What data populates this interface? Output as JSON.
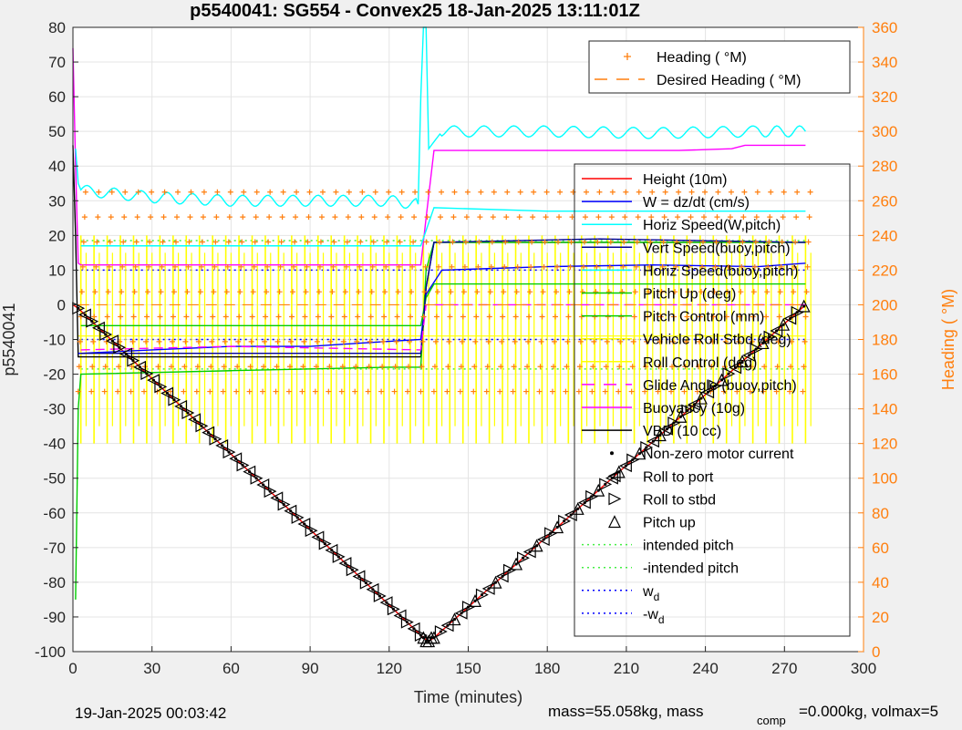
{
  "title": "p5540041: SG554 - Convex25 18-Jan-2025 13:11:01Z",
  "footer": {
    "date": "19-Jan-2025 00:03:42",
    "mass_text": "mass=55.058kg, mass",
    "comp_sub": "comp",
    "comp_text": "=0.000kg, volmax=5"
  },
  "colors": {
    "red": "#ff0000",
    "blue": "#0000ff",
    "cyan": "#00ffff",
    "navy": "#000099",
    "green": "#00cc00",
    "magenta": "#ff00ff",
    "yellow": "#ffff00",
    "orange": "#ff7f0e",
    "black": "#000000",
    "lightgreen": "#44ee44"
  },
  "chart_data": {
    "type": "line",
    "title": "p5540041: SG554 - Convex25 18-Jan-2025 13:11:01Z",
    "xlabel": "Time (minutes)",
    "ylabel": "p5540041",
    "y2label": "Heading (  °M)",
    "xlim": [
      0,
      300
    ],
    "ylim": [
      -100,
      80
    ],
    "y2lim": [
      0,
      360
    ],
    "xticks": [
      0,
      30,
      60,
      90,
      120,
      150,
      180,
      210,
      240,
      270,
      300
    ],
    "yticks": [
      -100,
      -90,
      -80,
      -70,
      -60,
      -50,
      -40,
      -30,
      -20,
      -10,
      0,
      10,
      20,
      30,
      40,
      50,
      60,
      70,
      80
    ],
    "y2ticks": [
      0,
      20,
      40,
      60,
      80,
      100,
      120,
      140,
      160,
      180,
      200,
      220,
      240,
      260,
      280,
      300,
      320,
      340,
      360
    ],
    "grid": true,
    "legend_top": [
      {
        "label": "Heading (  °M)",
        "style": "plus",
        "color": "orange"
      },
      {
        "label": "Desired Heading (    °M)",
        "style": "dash",
        "color": "orange"
      }
    ],
    "legend_main": [
      {
        "label": "Height (10m)",
        "style": "line",
        "color": "red"
      },
      {
        "label": "W = dz/dt (cm/s)",
        "style": "line",
        "color": "blue"
      },
      {
        "label": "Horiz Speed(W,pitch)",
        "style": "line",
        "color": "cyan"
      },
      {
        "label": "Vert Speed(buoy,pitch)",
        "style": "line",
        "color": "navy"
      },
      {
        "label": "Horiz Speed(buoy,pitch)",
        "style": "line",
        "color": "cyan"
      },
      {
        "label": "Pitch Up (deg)",
        "style": "line",
        "color": "green"
      },
      {
        "label": "Pitch Control (mm)",
        "style": "line",
        "color": "green"
      },
      {
        "label": "Vehicle Roll Stbd (deg)",
        "style": "line",
        "color": "yellow"
      },
      {
        "label": "Roll Control (deg)",
        "style": "line",
        "color": "yellow"
      },
      {
        "label": "Glide Angle (buoy,pitch)",
        "style": "dash",
        "color": "magenta"
      },
      {
        "label": "Buoyancy (10g)",
        "style": "line",
        "color": "magenta"
      },
      {
        "label": "VBD (10 cc)",
        "style": "line",
        "color": "black"
      },
      {
        "label": "Non-zero motor current",
        "style": "dot",
        "color": "black"
      },
      {
        "label": "Roll to port",
        "style": "tri-left",
        "color": "black"
      },
      {
        "label": "Roll to stbd",
        "style": "tri-right",
        "color": "black"
      },
      {
        "label": "Pitch up",
        "style": "tri-up",
        "color": "black"
      },
      {
        "label": "intended pitch",
        "style": "dotted",
        "color": "lightgreen"
      },
      {
        "label": "-intended pitch",
        "style": "dotted",
        "color": "lightgreen"
      },
      {
        "label": "w",
        "sub": "d",
        "style": "dotted",
        "color": "blue"
      },
      {
        "label": "-w",
        "sub": "d",
        "style": "dotted",
        "color": "blue"
      }
    ],
    "series": [
      {
        "name": "Height (10m)",
        "color": "red",
        "x": [
          0,
          2,
          133,
          135,
          137,
          278
        ],
        "y": [
          0,
          -1,
          -96,
          -97,
          -96,
          0
        ]
      },
      {
        "name": "Buoyancy (10g)",
        "color": "magenta",
        "x": [
          0,
          1,
          2,
          3,
          132,
          134,
          137,
          230,
          250,
          255,
          278
        ],
        "y": [
          74,
          40,
          12,
          11.5,
          11.5,
          25,
          44.5,
          44.5,
          45,
          46,
          46
        ]
      },
      {
        "name": "VBD (10 cc)",
        "color": "black",
        "x": [
          0,
          1,
          2,
          3,
          132,
          134,
          137,
          278
        ],
        "y": [
          46,
          20,
          -15,
          -15,
          -15,
          5,
          18,
          18
        ]
      },
      {
        "name": "W = dz/dt (cm/s)",
        "color": "blue",
        "x": [
          2,
          3,
          30,
          60,
          90,
          110,
          132,
          134,
          140,
          180,
          220,
          260,
          278
        ],
        "y": [
          -14,
          -14,
          -13,
          -12,
          -12,
          -11,
          -10,
          3,
          10,
          11,
          11.5,
          11,
          12
        ]
      },
      {
        "name": "Horiz Speed(W,pitch)",
        "color": "cyan",
        "x": [
          1,
          2,
          3,
          30,
          60,
          90,
          120,
          131,
          132,
          133,
          134,
          135,
          137,
          140,
          180,
          220,
          260,
          278
        ],
        "y": [
          45,
          35,
          33,
          31,
          30,
          30,
          30,
          29,
          60,
          80,
          80,
          45,
          47,
          50,
          50,
          49.5,
          50,
          50
        ]
      },
      {
        "name": "Horiz Speed(buoy,pitch)",
        "color": "cyan",
        "x": [
          3,
          60,
          120,
          132,
          137,
          180,
          240,
          278
        ],
        "y": [
          17,
          17,
          17,
          17,
          28,
          27,
          27,
          27
        ]
      },
      {
        "name": "Pitch Control (mm)",
        "color": "green",
        "x": [
          1,
          2,
          3,
          60,
          120,
          132,
          134,
          137,
          200,
          278
        ],
        "y": [
          -85,
          -30,
          -20,
          -19,
          -18,
          -18,
          10,
          18,
          18,
          18
        ]
      },
      {
        "name": "Pitch Up (deg)",
        "color": "green",
        "x": [
          3,
          60,
          132,
          134,
          137,
          200,
          278
        ],
        "y": [
          -6,
          -6,
          -6,
          2,
          6,
          6,
          6
        ]
      },
      {
        "name": "Vert Speed(buoy,pitch)",
        "color": "navy",
        "x": [
          3,
          60,
          132,
          134,
          137,
          200,
          278
        ],
        "y": [
          -14,
          -14,
          -14,
          5,
          18,
          19,
          18
        ]
      },
      {
        "name": "Glide Angle (buoy,pitch)",
        "color": "magenta",
        "x": [
          3,
          60,
          132,
          134,
          137,
          200,
          278
        ],
        "y": [
          -13,
          -12,
          -13,
          0,
          0,
          0,
          0
        ]
      }
    ],
    "reference_lines": [
      {
        "name": "intended pitch",
        "color": "lightgreen",
        "y": 18.5
      },
      {
        "name": "-intended pitch",
        "color": "lightgreen",
        "y": -18.5
      },
      {
        "name": "w_d",
        "color": "blue",
        "y": 10
      },
      {
        "name": "-w_d",
        "color": "blue",
        "y": -10
      }
    ],
    "heading_cycle": {
      "period_min": 5,
      "x_start": 2,
      "x_end": 278,
      "low_deg": 150,
      "high_deg": 265,
      "desired_deg": 200,
      "markers": "plus"
    },
    "roll_oscillation": {
      "period_min": 5,
      "x_start": 2,
      "x_end": 278,
      "low": -40,
      "high": 20
    },
    "attitude_events": {
      "down_leg": {
        "x_start": 2,
        "x_end": 133,
        "interval_min": 2.6
      },
      "up_leg": {
        "x_start": 137,
        "x_end": 278,
        "interval_min": 2.6
      },
      "bottom": {
        "x": [
          133,
          134,
          135,
          136
        ],
        "y": [
          -96,
          -97,
          -97,
          -96
        ]
      }
    }
  }
}
